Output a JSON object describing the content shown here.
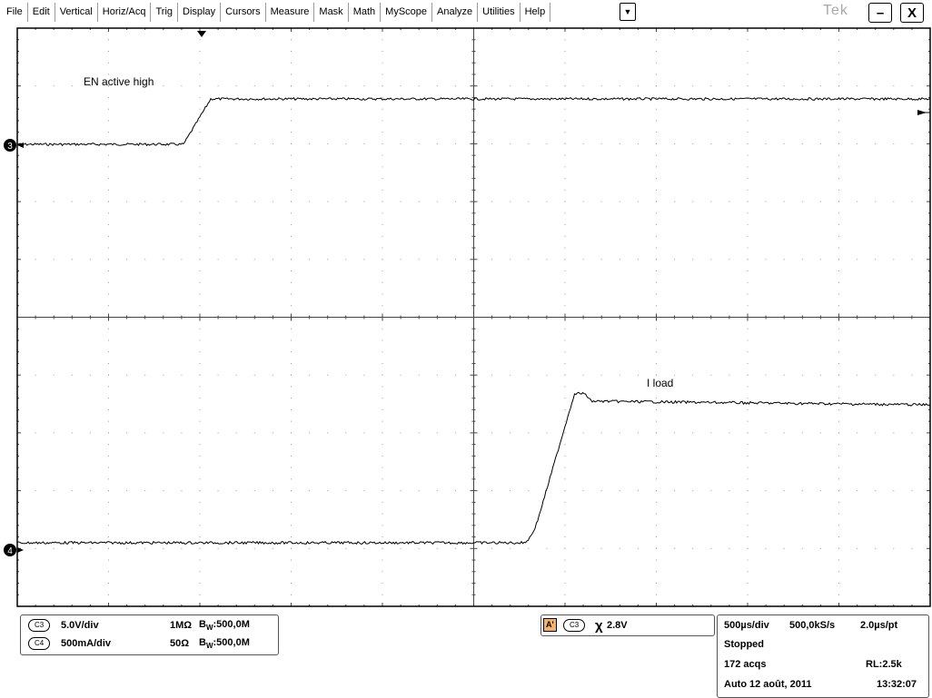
{
  "menu": {
    "items": [
      "File",
      "Edit",
      "Vertical",
      "Horiz/Acq",
      "Trig",
      "Display",
      "Cursors",
      "Measure",
      "Mask",
      "Math",
      "MyScope",
      "Analyze",
      "Utilities",
      "Help"
    ],
    "dropdown_icon": "chevron-down-icon"
  },
  "brand": "Tek",
  "window_buttons": {
    "minimize": "–",
    "close": "X"
  },
  "waveform": {
    "ch3_label": "EN active high",
    "ch4_label": "I load",
    "ch3_marker": "3",
    "ch4_marker": "4",
    "trace_color": "#000000",
    "grid_color": "#9a9a9a",
    "axis_color": "#444444"
  },
  "channels": [
    {
      "badge": "C3",
      "scale": "5.0V/div",
      "impedance": "1MΩ",
      "bw_prefix": "B",
      "bw_sub": "W",
      "bw_value": ":500,0M"
    },
    {
      "badge": "C4",
      "scale": "500mA/div",
      "impedance": "50Ω",
      "bw_prefix": "B",
      "bw_sub": "W",
      "bw_value": ":500,0M"
    }
  ],
  "trigger": {
    "mode_badge": "A'",
    "source": "C3",
    "slope_icon": "trigger-slope-icon",
    "level": "2.8V"
  },
  "acquisition": {
    "horizontal_scale": "500µs/div",
    "sample_rate": "500,0kS/s",
    "resolution": "2.0µs/pt",
    "state": "Stopped",
    "acq_count": "172 acqs",
    "record_length": "RL:2.5k",
    "trigger_mode": "Auto",
    "date": "12 août, 2011",
    "time": "13:32:07"
  }
}
